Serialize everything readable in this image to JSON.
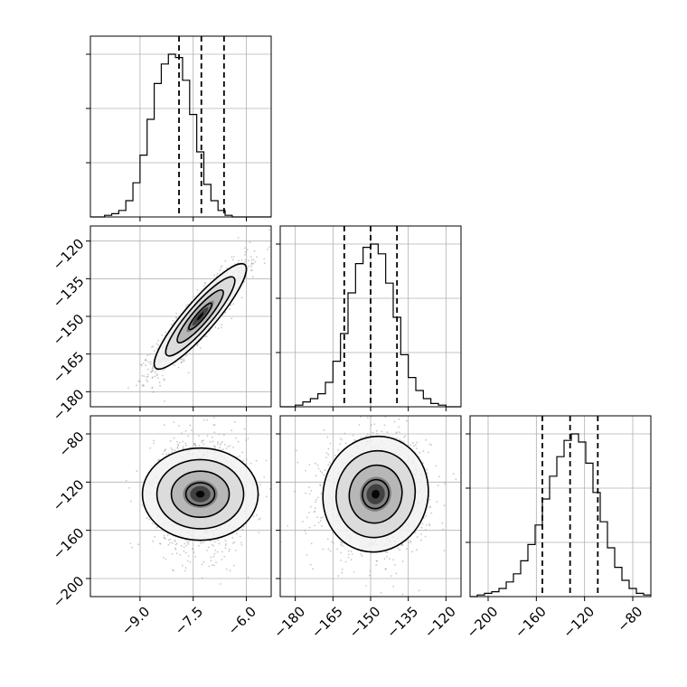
{
  "chart_data": {
    "type": "corner",
    "parameters": 3,
    "grid": true,
    "scatter_color": "#9a9a9a",
    "line_color": "#000000",
    "axis_ranges": [
      [
        -10.4,
        -5.3
      ],
      [
        -186,
        -114
      ],
      [
        -215,
        -65
      ]
    ],
    "ticks": {
      "p0": {
        "values": [
          -9.0,
          -7.5,
          -6.0
        ],
        "labels": [
          "−9.0",
          "−7.5",
          "−6.0"
        ]
      },
      "p1": {
        "values": [
          -180,
          -165,
          -150,
          -135,
          -120
        ],
        "labels": [
          "−180",
          "−165",
          "−150",
          "−135",
          "−120"
        ]
      },
      "p2": {
        "values": [
          -200,
          -160,
          -120,
          -80
        ],
        "labels": [
          "−200",
          "−160",
          "−120",
          "−80"
        ]
      }
    },
    "histograms": [
      {
        "param": 0,
        "bin_edges": [
          -10.4,
          -10.2,
          -10.0,
          -9.8,
          -9.6,
          -9.4,
          -9.2,
          -9.0,
          -8.8,
          -8.6,
          -8.4,
          -8.2,
          -8.0,
          -7.8,
          -7.6,
          -7.4,
          -7.2,
          -7.0,
          -6.8,
          -6.6,
          -6.4,
          -6.2,
          -6.0,
          -5.8,
          -5.6,
          -5.4,
          -5.3
        ],
        "counts": [
          0,
          0,
          1,
          2,
          4,
          10,
          21,
          38,
          60,
          82,
          94,
          100,
          98,
          84,
          63,
          40,
          20,
          10,
          4,
          1,
          0,
          0,
          0,
          0,
          0,
          0
        ],
        "quantiles": [
          -7.9,
          -7.27,
          -6.63
        ]
      },
      {
        "param": 1,
        "bin_edges": [
          -186,
          -183,
          -180,
          -177,
          -174,
          -171,
          -168,
          -165,
          -162,
          -159,
          -156,
          -153,
          -150,
          -147,
          -144,
          -141,
          -138,
          -135,
          -132,
          -129,
          -126,
          -123,
          -120,
          -117,
          -114
        ],
        "counts": [
          0,
          0,
          1,
          3,
          5,
          8,
          15,
          28,
          45,
          70,
          88,
          98,
          100,
          94,
          76,
          55,
          32,
          18,
          10,
          5,
          2,
          1,
          0,
          0
        ],
        "quantiles": [
          -160.5,
          -150.0,
          -139.5
        ]
      },
      {
        "param": 2,
        "bin_edges": [
          -215,
          -209,
          -203,
          -197,
          -191,
          -185,
          -179,
          -173,
          -167,
          -161,
          -155,
          -149,
          -143,
          -137,
          -131,
          -125,
          -119,
          -113,
          -107,
          -101,
          -95,
          -89,
          -83,
          -77,
          -71,
          -65
        ],
        "counts": [
          0,
          1,
          2,
          3,
          5,
          9,
          14,
          22,
          32,
          44,
          60,
          74,
          86,
          96,
          100,
          95,
          82,
          64,
          46,
          30,
          18,
          10,
          5,
          2,
          1
        ],
        "quantiles": [
          -155,
          -132,
          -109
        ]
      }
    ],
    "two_d": [
      {
        "x_param": 0,
        "y_param": 1,
        "mean": [
          -7.3,
          -150
        ],
        "sd": [
          0.65,
          10.5
        ],
        "correlation": 0.9
      },
      {
        "x_param": 0,
        "y_param": 2,
        "mean": [
          -7.3,
          -130
        ],
        "sd": [
          0.65,
          24
        ],
        "correlation": 0.0
      },
      {
        "x_param": 1,
        "y_param": 2,
        "mean": [
          -148,
          -130
        ],
        "sd": [
          10.5,
          24
        ],
        "correlation": 0.05
      }
    ],
    "contour_levels_sigma": [
      0.5,
      1.0,
      1.5,
      2.0
    ]
  }
}
